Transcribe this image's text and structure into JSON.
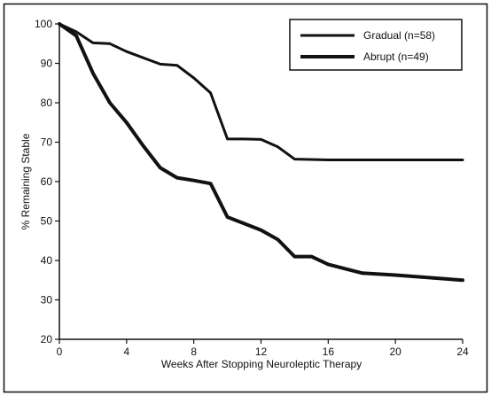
{
  "chart_data": {
    "type": "line",
    "title": "",
    "xlabel": "Weeks After Stopping Neuroleptic Therapy",
    "ylabel": "% Remaining Stable",
    "xlim": [
      0,
      24
    ],
    "ylim": [
      20,
      100
    ],
    "xticks": [
      0,
      4,
      8,
      12,
      16,
      20,
      24
    ],
    "yticks": [
      20,
      30,
      40,
      50,
      60,
      70,
      80,
      90,
      100
    ],
    "grid": false,
    "legend_position": "top-right",
    "series": [
      {
        "name": "Gradual (n=58)",
        "points": [
          [
            0,
            100
          ],
          [
            1,
            98
          ],
          [
            2,
            95.2
          ],
          [
            3,
            95
          ],
          [
            4,
            93
          ],
          [
            6,
            89.8
          ],
          [
            7,
            89.5
          ],
          [
            8,
            86.3
          ],
          [
            9,
            82.5
          ],
          [
            10,
            70.8
          ],
          [
            11,
            70.8
          ],
          [
            12,
            70.7
          ],
          [
            13,
            68.8
          ],
          [
            14,
            65.7
          ],
          [
            16,
            65.5
          ],
          [
            20,
            65.5
          ],
          [
            24,
            65.5
          ]
        ]
      },
      {
        "name": "Abrupt (n=49)",
        "points": [
          [
            0,
            100
          ],
          [
            1,
            97
          ],
          [
            2,
            87.5
          ],
          [
            3,
            80
          ],
          [
            4,
            75
          ],
          [
            5,
            69
          ],
          [
            6,
            63.5
          ],
          [
            7,
            61
          ],
          [
            8,
            60.3
          ],
          [
            9,
            59.5
          ],
          [
            10,
            51
          ],
          [
            12,
            47.7
          ],
          [
            13,
            45.3
          ],
          [
            14,
            41
          ],
          [
            15,
            41
          ],
          [
            16,
            39
          ],
          [
            18,
            36.8
          ],
          [
            20,
            36.3
          ],
          [
            24,
            35
          ]
        ]
      }
    ]
  }
}
